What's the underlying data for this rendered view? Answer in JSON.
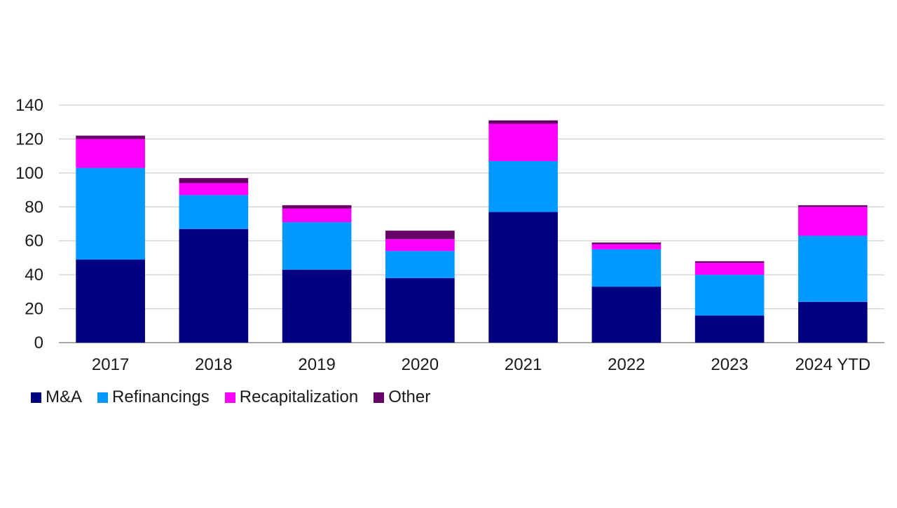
{
  "chart_data": {
    "type": "bar",
    "stacked": true,
    "title": "",
    "xlabel": "",
    "ylabel": "",
    "ylim": [
      0,
      140
    ],
    "yticks": [
      0,
      20,
      40,
      60,
      80,
      100,
      120,
      140
    ],
    "grid": true,
    "legend_position": "bottom-left",
    "categories": [
      "2017",
      "2018",
      "2019",
      "2020",
      "2021",
      "2022",
      "2023",
      "2024 YTD"
    ],
    "series": [
      {
        "name": "M&A",
        "color": "#000080",
        "values": [
          49,
          67,
          43,
          38,
          77,
          33,
          16,
          24
        ]
      },
      {
        "name": "Refinancings",
        "color": "#0099ff",
        "values": [
          54,
          20,
          28,
          16,
          30,
          22,
          24,
          39
        ]
      },
      {
        "name": "Recapitalization",
        "color": "#ff00ff",
        "values": [
          17,
          7,
          8,
          7,
          22,
          3,
          7,
          17
        ]
      },
      {
        "name": "Other",
        "color": "#660066",
        "values": [
          2,
          3,
          2,
          5,
          2,
          1,
          1,
          1
        ]
      }
    ]
  }
}
